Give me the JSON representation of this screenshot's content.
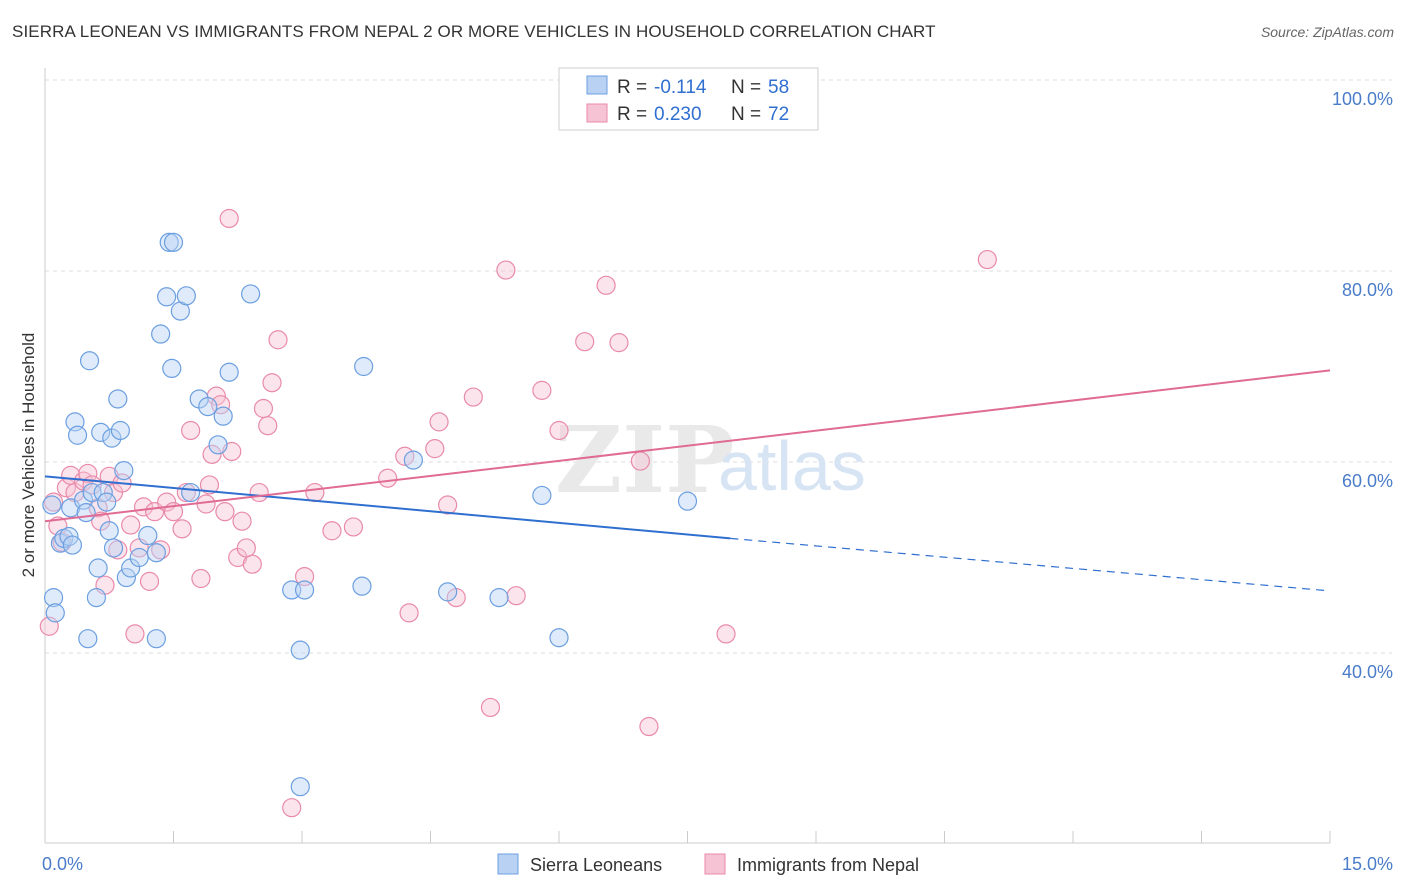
{
  "title": "SIERRA LEONEAN VS IMMIGRANTS FROM NEPAL 2 OR MORE VEHICLES IN HOUSEHOLD CORRELATION CHART",
  "source": "Source: ZipAtlas.com",
  "watermark": {
    "part1": "ZIP",
    "part2": "atlas"
  },
  "legend_top": [
    {
      "r_label": "R =",
      "r_value": "-0.114",
      "n_label": "N =",
      "n_value": "58"
    },
    {
      "r_label": "R =",
      "r_value": "0.230",
      "n_label": "N =",
      "n_value": "72"
    }
  ],
  "chart_data": {
    "type": "scatter",
    "title": "SIERRA LEONEAN VS IMMIGRANTS FROM NEPAL 2 OR MORE VEHICLES IN HOUSEHOLD CORRELATION CHART",
    "xlabel": "",
    "ylabel": "2 or more Vehicles in Household",
    "xlim": [
      0,
      15
    ],
    "ylim": [
      22,
      102
    ],
    "x_tick_labels": [
      "0.0%",
      "15.0%"
    ],
    "y_tick_values": [
      40,
      60,
      80,
      100
    ],
    "y_tick_labels": [
      "40.0%",
      "60.0%",
      "80.0%",
      "100.0%"
    ],
    "grid": true,
    "legend_position": "top-center",
    "colors": {
      "blue": "#6c9fe0",
      "blue_fill": "#b9d2f3",
      "blue_line": "#2f6fd0",
      "pink": "#e98aaa",
      "pink_fill": "#f6c3d4",
      "pink_line": "#e06b95"
    },
    "series": [
      {
        "name": "Sierra Leoneans",
        "color": "blue",
        "trend": {
          "x0": 0,
          "y0": 58.5,
          "x1": 8.0,
          "y1": 52.0,
          "x_dash_end": 15,
          "y_dash_end": 46.5
        },
        "points": [
          [
            0.08,
            55.5
          ],
          [
            0.1,
            45.8
          ],
          [
            0.12,
            44.2
          ],
          [
            0.18,
            51.5
          ],
          [
            0.22,
            52.0
          ],
          [
            0.28,
            52.2
          ],
          [
            0.3,
            55.2
          ],
          [
            0.32,
            51.3
          ],
          [
            0.35,
            64.2
          ],
          [
            0.38,
            62.8
          ],
          [
            0.45,
            56.0
          ],
          [
            0.48,
            54.7
          ],
          [
            0.5,
            41.5
          ],
          [
            0.52,
            70.6
          ],
          [
            0.55,
            56.8
          ],
          [
            0.6,
            45.8
          ],
          [
            0.62,
            48.9
          ],
          [
            0.65,
            63.1
          ],
          [
            0.68,
            56.8
          ],
          [
            0.72,
            55.8
          ],
          [
            0.75,
            52.8
          ],
          [
            0.78,
            62.5
          ],
          [
            0.8,
            51.0
          ],
          [
            0.85,
            66.6
          ],
          [
            0.88,
            63.3
          ],
          [
            0.92,
            59.1
          ],
          [
            0.95,
            47.9
          ],
          [
            1.0,
            48.9
          ],
          [
            1.1,
            50.0
          ],
          [
            1.2,
            52.3
          ],
          [
            1.3,
            41.5
          ],
          [
            1.35,
            73.4
          ],
          [
            1.42,
            77.3
          ],
          [
            1.45,
            83.0
          ],
          [
            1.48,
            69.8
          ],
          [
            1.5,
            83.0
          ],
          [
            1.58,
            75.8
          ],
          [
            1.65,
            77.4
          ],
          [
            1.7,
            56.8
          ],
          [
            1.8,
            66.6
          ],
          [
            1.9,
            65.8
          ],
          [
            2.02,
            61.8
          ],
          [
            2.08,
            64.8
          ],
          [
            2.15,
            69.4
          ],
          [
            2.4,
            77.6
          ],
          [
            2.88,
            46.6
          ],
          [
            3.03,
            46.6
          ],
          [
            2.98,
            40.3
          ],
          [
            2.98,
            26.0
          ],
          [
            3.7,
            47.0
          ],
          [
            3.72,
            70.0
          ],
          [
            4.3,
            60.2
          ],
          [
            4.7,
            46.4
          ],
          [
            5.3,
            45.8
          ],
          [
            5.8,
            56.5
          ],
          [
            6.0,
            41.6
          ],
          [
            7.5,
            55.9
          ],
          [
            1.3,
            50.5
          ]
        ]
      },
      {
        "name": "Immigrants from Nepal",
        "color": "pink",
        "trend": {
          "x0": 0,
          "y0": 53.8,
          "x1": 15,
          "y1": 69.6
        },
        "points": [
          [
            0.05,
            42.8
          ],
          [
            0.1,
            55.8
          ],
          [
            0.15,
            53.3
          ],
          [
            0.2,
            51.6
          ],
          [
            0.25,
            57.3
          ],
          [
            0.3,
            58.6
          ],
          [
            0.35,
            56.8
          ],
          [
            0.45,
            58.0
          ],
          [
            0.5,
            58.8
          ],
          [
            0.55,
            57.6
          ],
          [
            0.62,
            55.2
          ],
          [
            0.65,
            53.8
          ],
          [
            0.7,
            47.1
          ],
          [
            0.75,
            58.5
          ],
          [
            0.8,
            56.8
          ],
          [
            0.85,
            50.8
          ],
          [
            0.9,
            57.8
          ],
          [
            1.0,
            53.4
          ],
          [
            1.05,
            42.0
          ],
          [
            1.1,
            51.0
          ],
          [
            1.15,
            55.3
          ],
          [
            1.22,
            47.5
          ],
          [
            1.28,
            54.8
          ],
          [
            1.35,
            50.8
          ],
          [
            1.42,
            55.8
          ],
          [
            1.5,
            54.8
          ],
          [
            1.6,
            53.0
          ],
          [
            1.65,
            56.8
          ],
          [
            1.7,
            63.3
          ],
          [
            1.82,
            47.8
          ],
          [
            1.88,
            55.6
          ],
          [
            1.92,
            57.6
          ],
          [
            1.95,
            60.8
          ],
          [
            2.0,
            66.9
          ],
          [
            2.05,
            66.0
          ],
          [
            2.1,
            54.8
          ],
          [
            2.15,
            85.5
          ],
          [
            2.18,
            61.1
          ],
          [
            2.25,
            50.0
          ],
          [
            2.3,
            53.8
          ],
          [
            2.35,
            51.0
          ],
          [
            2.42,
            49.3
          ],
          [
            2.5,
            56.8
          ],
          [
            2.55,
            65.6
          ],
          [
            2.6,
            63.8
          ],
          [
            2.65,
            68.3
          ],
          [
            2.72,
            72.8
          ],
          [
            2.88,
            23.8
          ],
          [
            3.03,
            48.0
          ],
          [
            3.15,
            56.8
          ],
          [
            3.35,
            52.8
          ],
          [
            3.6,
            53.2
          ],
          [
            4.0,
            58.3
          ],
          [
            4.2,
            60.6
          ],
          [
            4.25,
            44.2
          ],
          [
            4.55,
            61.4
          ],
          [
            4.6,
            64.2
          ],
          [
            4.7,
            55.5
          ],
          [
            4.8,
            45.8
          ],
          [
            5.0,
            66.8
          ],
          [
            5.2,
            34.3
          ],
          [
            5.38,
            80.1
          ],
          [
            5.5,
            46.0
          ],
          [
            5.8,
            67.5
          ],
          [
            6.0,
            63.3
          ],
          [
            6.3,
            72.6
          ],
          [
            6.55,
            78.5
          ],
          [
            6.7,
            72.5
          ],
          [
            6.95,
            60.1
          ],
          [
            7.05,
            32.3
          ],
          [
            7.95,
            42.0
          ],
          [
            11.0,
            81.2
          ]
        ]
      }
    ]
  },
  "bottom_legend": [
    {
      "label": "Sierra Leoneans"
    },
    {
      "label": "Immigrants from Nepal"
    }
  ]
}
